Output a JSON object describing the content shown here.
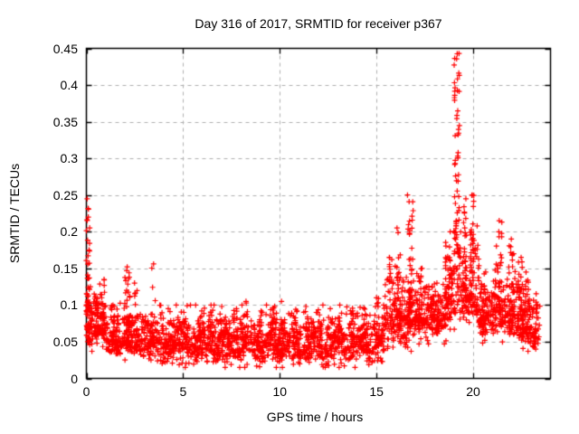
{
  "chart_data": {
    "type": "scatter",
    "title": "Day 316 of 2017, SRMTID for receiver p367",
    "xlabel": "GPS time / hours",
    "ylabel": "SRMTID / TECUs",
    "xlim": [
      0,
      24
    ],
    "ylim": [
      0,
      0.45
    ],
    "xticks": [
      {
        "v": 0,
        "label": "0"
      },
      {
        "v": 5,
        "label": "5"
      },
      {
        "v": 10,
        "label": "10"
      },
      {
        "v": 15,
        "label": "15"
      },
      {
        "v": 20,
        "label": "20"
      }
    ],
    "yticks": [
      {
        "v": 0.0,
        "label": "0"
      },
      {
        "v": 0.05,
        "label": "0.05"
      },
      {
        "v": 0.1,
        "label": "0.1"
      },
      {
        "v": 0.15,
        "label": "0.15"
      },
      {
        "v": 0.2,
        "label": "0.2"
      },
      {
        "v": 0.25,
        "label": "0.25"
      },
      {
        "v": 0.3,
        "label": "0.3"
      },
      {
        "v": 0.35,
        "label": "0.35"
      },
      {
        "v": 0.4,
        "label": "0.4"
      },
      {
        "v": 0.45,
        "label": "0.45"
      }
    ],
    "grid": {
      "show": true,
      "color": "#b0b0b0",
      "dash": [
        4,
        4
      ]
    },
    "axis_color": "#000000",
    "background_color": "#ffffff",
    "legend": "none",
    "marker": {
      "shape": "plus",
      "color": "#ff0000",
      "size": 7
    },
    "series": [
      {
        "name": "SRMTID",
        "seed": 42,
        "bands_format": [
          "t0",
          "t1",
          "n",
          "lo",
          "mid",
          "hi",
          "waveAmp",
          "wavePeriod"
        ],
        "bands": [
          [
            0.0,
            1.0,
            120,
            0.04,
            0.075,
            0.125
          ],
          [
            1.0,
            3.6,
            300,
            0.028,
            0.052,
            0.098
          ],
          [
            3.6,
            15.4,
            1300,
            0.018,
            0.047,
            0.092,
            0.009,
            1.15
          ],
          [
            15.4,
            16.9,
            170,
            0.04,
            0.08,
            0.145
          ],
          [
            16.9,
            18.6,
            190,
            0.05,
            0.085,
            0.135
          ],
          [
            18.6,
            20.3,
            180,
            0.07,
            0.115,
            0.2
          ],
          [
            20.3,
            21.0,
            80,
            0.05,
            0.085,
            0.135
          ],
          [
            21.0,
            22.5,
            160,
            0.05,
            0.09,
            0.16
          ],
          [
            22.5,
            23.45,
            100,
            0.04,
            0.07,
            0.125
          ]
        ],
        "bursts_format": [
          "t",
          "w",
          "n",
          "base",
          "top"
        ],
        "bursts": [
          [
            0.08,
            0.18,
            50,
            0.05,
            0.245
          ],
          [
            0.5,
            0.25,
            18,
            0.06,
            0.115
          ],
          [
            0.85,
            0.2,
            22,
            0.06,
            0.135
          ],
          [
            1.35,
            0.2,
            15,
            0.05,
            0.1
          ],
          [
            2.1,
            0.3,
            32,
            0.055,
            0.152
          ],
          [
            2.55,
            0.15,
            12,
            0.055,
            0.13
          ],
          [
            3.4,
            0.18,
            16,
            0.05,
            0.156
          ],
          [
            4.35,
            0.25,
            10,
            0.055,
            0.095
          ],
          [
            5.15,
            0.25,
            10,
            0.055,
            0.09
          ],
          [
            5.9,
            0.25,
            10,
            0.055,
            0.092
          ],
          [
            6.5,
            0.25,
            10,
            0.055,
            0.09
          ],
          [
            7.1,
            0.25,
            10,
            0.055,
            0.098
          ],
          [
            7.7,
            0.25,
            10,
            0.055,
            0.095
          ],
          [
            8.3,
            0.25,
            10,
            0.055,
            0.105
          ],
          [
            9.0,
            0.25,
            10,
            0.055,
            0.092
          ],
          [
            9.6,
            0.25,
            10,
            0.055,
            0.096
          ],
          [
            10.2,
            0.25,
            10,
            0.055,
            0.105
          ],
          [
            10.8,
            0.25,
            10,
            0.055,
            0.092
          ],
          [
            11.4,
            0.25,
            10,
            0.055,
            0.098
          ],
          [
            12.0,
            0.25,
            10,
            0.055,
            0.09
          ],
          [
            12.6,
            0.25,
            10,
            0.055,
            0.095
          ],
          [
            13.2,
            0.25,
            10,
            0.055,
            0.1
          ],
          [
            13.8,
            0.25,
            10,
            0.055,
            0.092
          ],
          [
            14.4,
            0.25,
            10,
            0.055,
            0.096
          ],
          [
            15.0,
            0.3,
            14,
            0.06,
            0.11
          ],
          [
            15.8,
            0.3,
            30,
            0.07,
            0.165
          ],
          [
            16.15,
            0.2,
            25,
            0.08,
            0.205
          ],
          [
            16.75,
            0.3,
            45,
            0.09,
            0.25
          ],
          [
            17.3,
            0.3,
            25,
            0.07,
            0.15
          ],
          [
            18.05,
            0.4,
            30,
            0.06,
            0.13
          ],
          [
            18.7,
            0.3,
            28,
            0.08,
            0.2
          ],
          [
            19.15,
            0.28,
            65,
            0.17,
            0.443
          ],
          [
            19.55,
            0.2,
            28,
            0.12,
            0.245
          ],
          [
            19.95,
            0.25,
            38,
            0.1,
            0.25
          ],
          [
            20.5,
            0.3,
            26,
            0.06,
            0.145
          ],
          [
            21.35,
            0.3,
            32,
            0.07,
            0.215
          ],
          [
            22.0,
            0.3,
            30,
            0.06,
            0.19
          ],
          [
            22.45,
            0.25,
            22,
            0.055,
            0.165
          ],
          [
            22.8,
            0.25,
            20,
            0.05,
            0.145
          ],
          [
            23.2,
            0.25,
            16,
            0.04,
            0.1
          ]
        ]
      }
    ]
  }
}
